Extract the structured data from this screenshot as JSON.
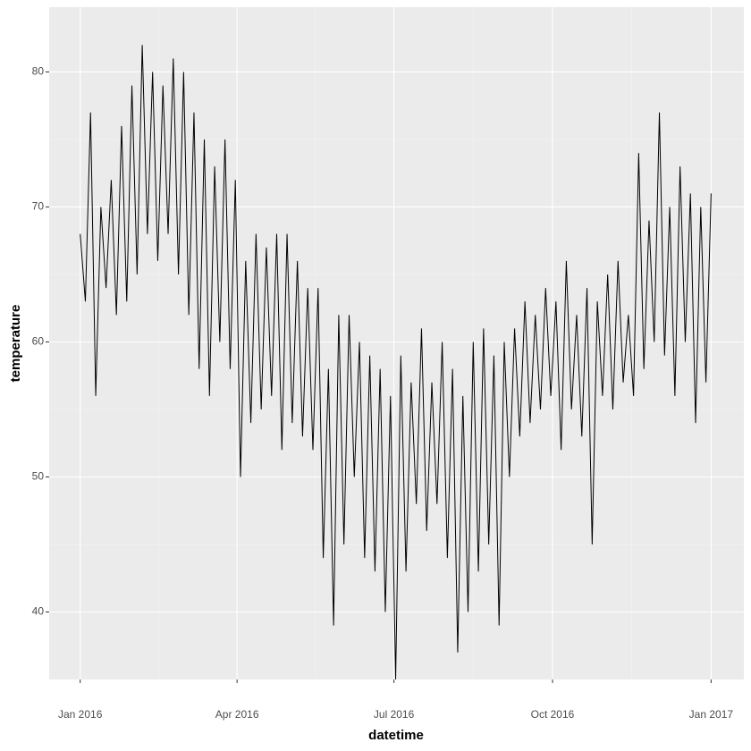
{
  "chart_data": {
    "type": "line",
    "x_label": "datetime",
    "y_label": "temperature",
    "x": [
      0,
      3,
      6,
      9,
      12,
      15,
      18,
      21,
      24,
      27,
      30,
      33,
      36,
      39,
      42,
      45,
      48,
      51,
      54,
      57,
      60,
      63,
      66,
      69,
      72,
      75,
      78,
      81,
      84,
      87,
      90,
      93,
      96,
      99,
      102,
      105,
      108,
      111,
      114,
      117,
      120,
      123,
      126,
      129,
      132,
      135,
      138,
      141,
      144,
      147,
      150,
      153,
      156,
      159,
      162,
      165,
      168,
      171,
      174,
      177,
      180,
      183,
      186,
      189,
      192,
      195,
      198,
      201,
      204,
      207,
      210,
      213,
      216,
      219,
      222,
      225,
      228,
      231,
      234,
      237,
      240,
      243,
      246,
      249,
      252,
      255,
      258,
      261,
      264,
      267,
      270,
      273,
      276,
      279,
      282,
      285,
      288,
      291,
      294,
      297,
      300,
      303,
      306,
      309,
      312,
      315,
      318,
      321,
      324,
      327,
      330,
      333,
      336,
      339,
      342,
      345,
      348,
      351,
      354,
      357,
      360,
      363,
      366
    ],
    "series": [
      {
        "color": "#000000",
        "values": [
          68,
          63,
          77,
          56,
          70,
          64,
          72,
          62,
          76,
          63,
          79,
          65,
          82,
          68,
          80,
          66,
          79,
          68,
          81,
          65,
          80,
          62,
          77,
          58,
          75,
          56,
          73,
          60,
          75,
          58,
          72,
          50,
          66,
          54,
          68,
          55,
          67,
          56,
          68,
          52,
          68,
          54,
          66,
          53,
          64,
          52,
          64,
          44,
          58,
          39,
          62,
          45,
          62,
          50,
          60,
          44,
          59,
          43,
          58,
          40,
          56,
          35,
          59,
          43,
          57,
          48,
          61,
          46,
          57,
          48,
          60,
          44,
          58,
          37,
          56,
          40,
          60,
          43,
          61,
          45,
          59,
          39,
          60,
          50,
          61,
          53,
          63,
          54,
          62,
          55,
          64,
          56,
          63,
          52,
          66,
          55,
          62,
          53,
          64,
          45,
          63,
          56,
          65,
          55,
          66,
          57,
          62,
          56,
          74,
          58,
          69,
          60,
          77,
          59,
          70,
          56,
          73,
          60,
          71,
          54,
          70,
          57,
          71
        ]
      }
    ],
    "xlim": [
      -18,
      385
    ],
    "xticks": [
      {
        "value": 0,
        "label": "Jan 2016"
      },
      {
        "value": 91,
        "label": "Apr 2016"
      },
      {
        "value": 182,
        "label": "Jul 2016"
      },
      {
        "value": 274,
        "label": "Oct 2016"
      },
      {
        "value": 366,
        "label": "Jan 2017"
      }
    ],
    "x_minor_ticks": [
      45.5,
      136.5,
      228,
      320
    ],
    "ylim": [
      35,
      84.8
    ],
    "yticks": [
      40,
      50,
      60,
      70,
      80
    ],
    "y_minor_ticks": [
      35,
      45,
      55,
      65,
      75
    ],
    "grid": true
  }
}
